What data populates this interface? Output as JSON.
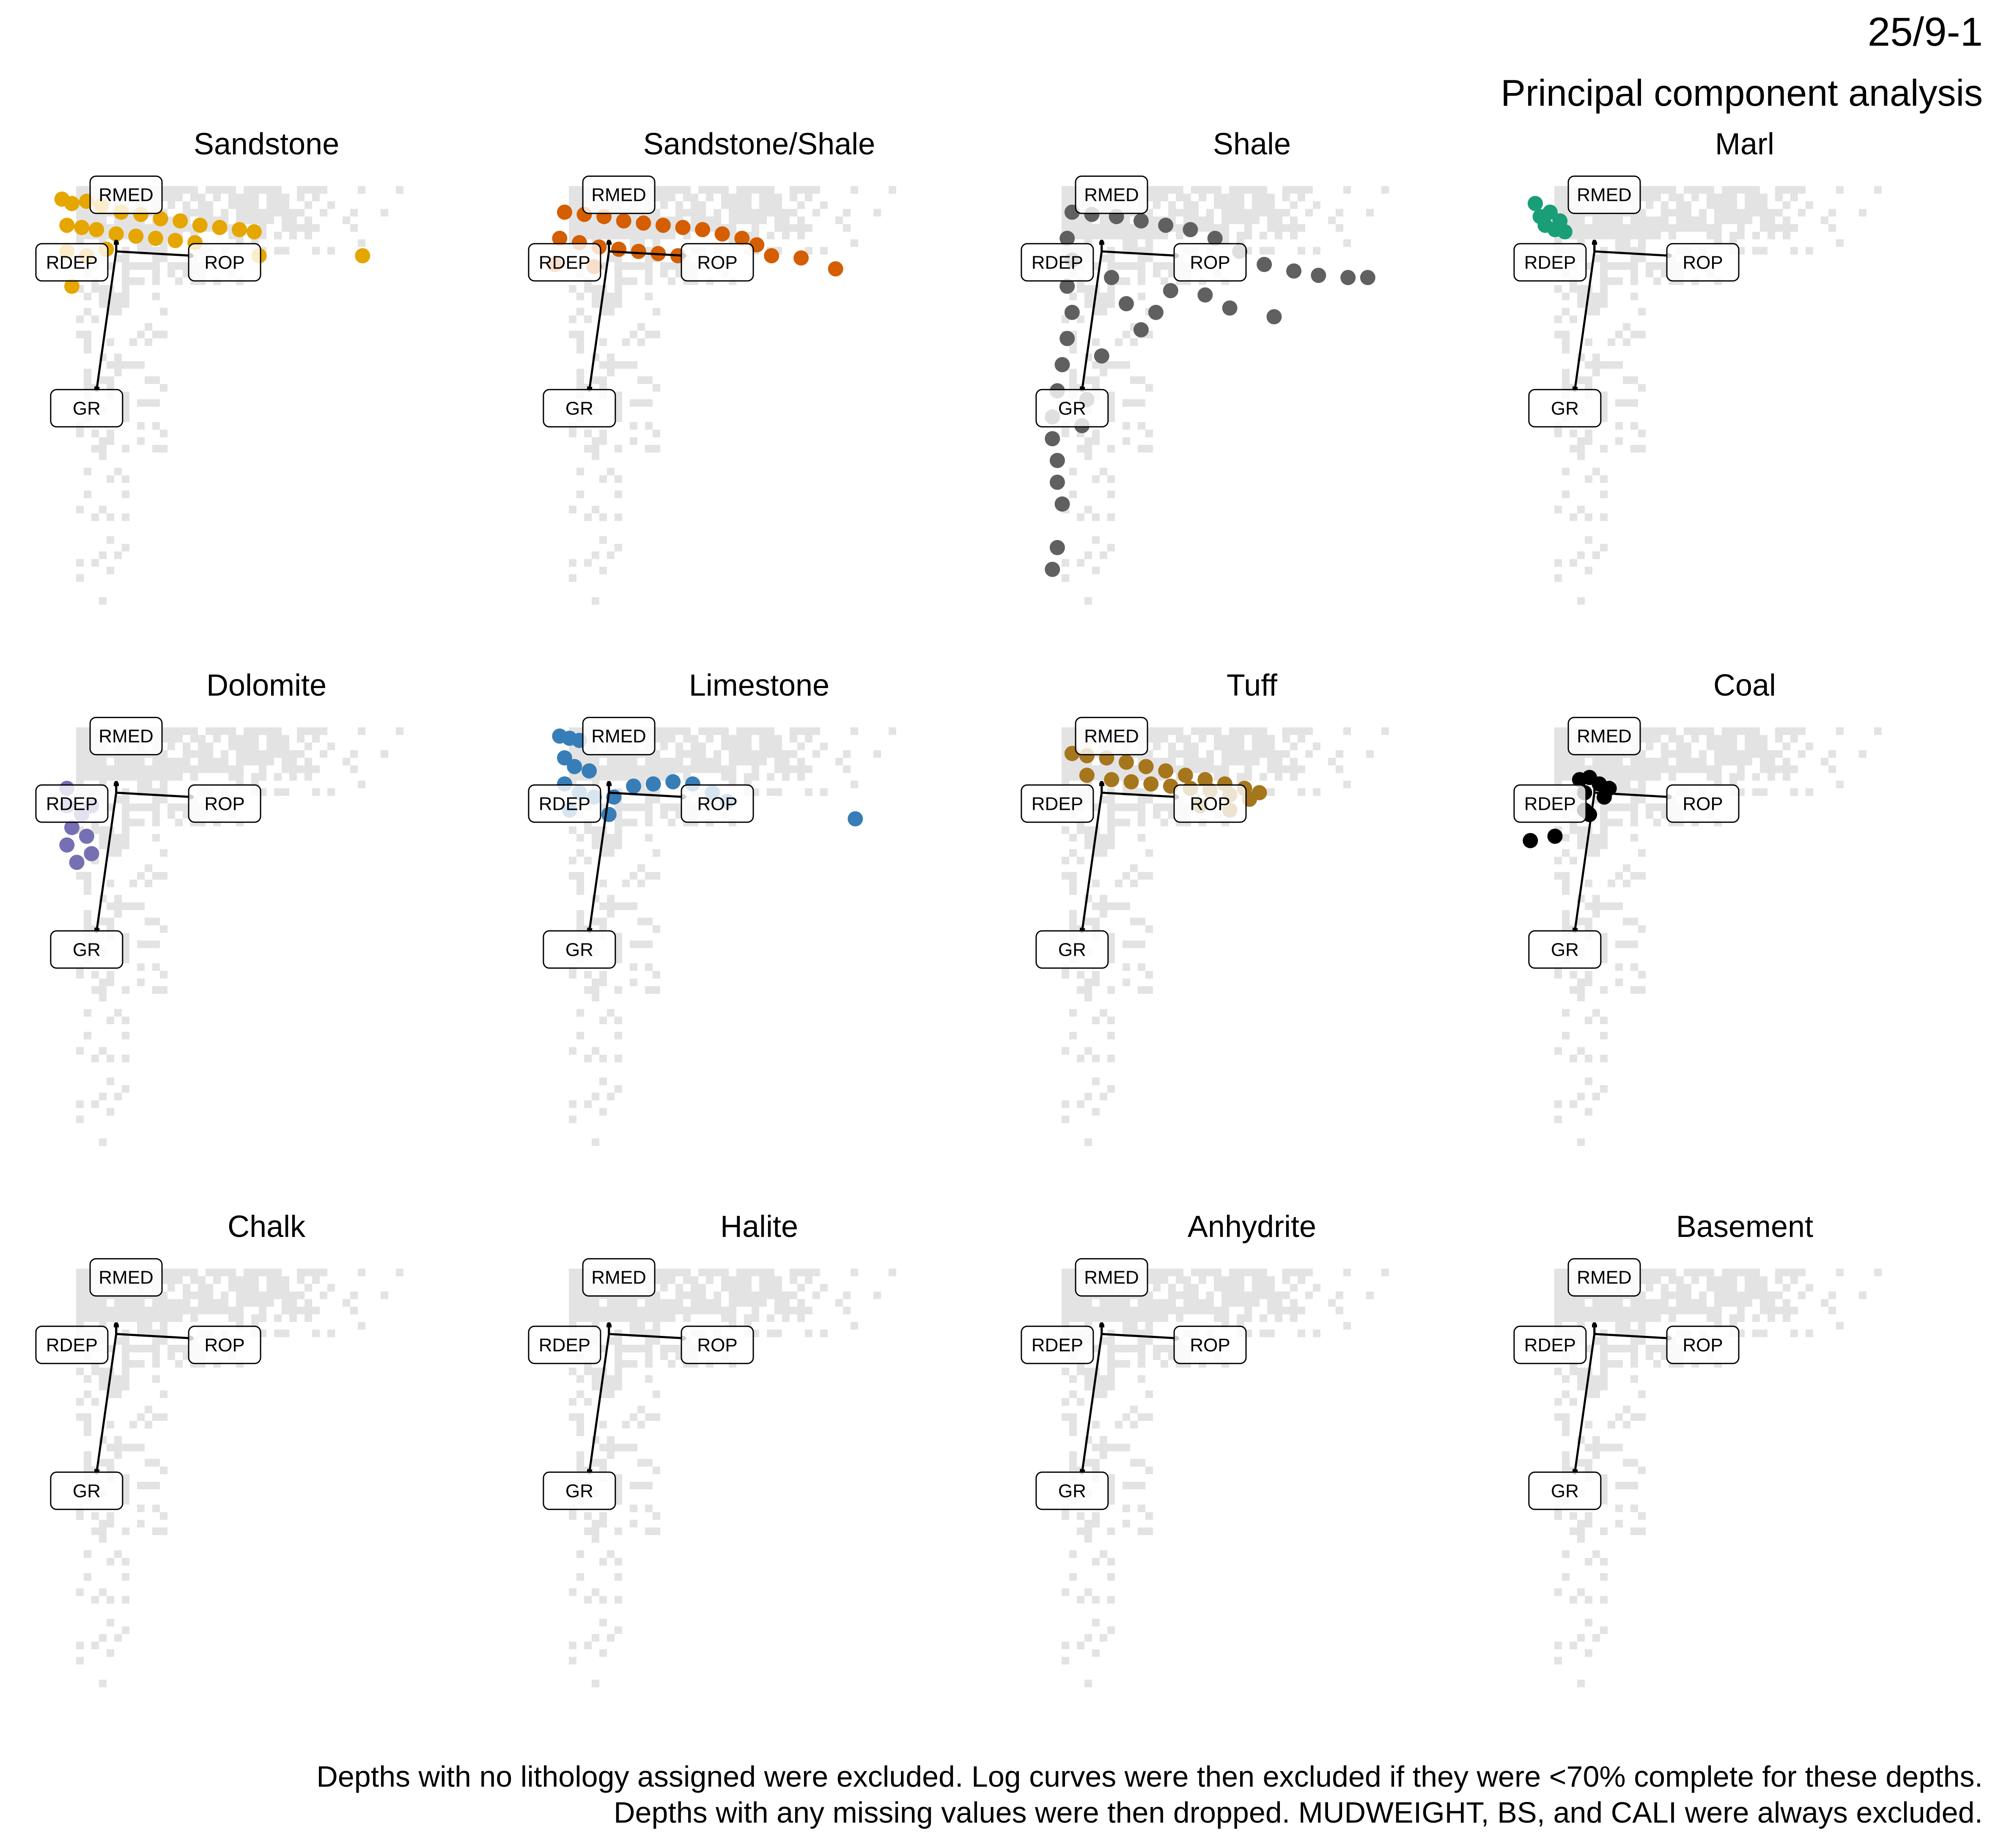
{
  "title": "25/9-1",
  "subtitle": "Principal component analysis",
  "caption": [
    "Depths with no lithology assigned were excluded. Log curves were then excluded if they were <70% complete for these depths.",
    "Depths with any missing values were then dropped. MUDWEIGHT, BS, and CALI were always excluded."
  ],
  "chart_data": {
    "type": "scatter",
    "xlim": [
      -1.5,
      8.5
    ],
    "ylim": [
      -8.5,
      1.5
    ],
    "background_color": "#e3e3e3",
    "loadings": [
      {
        "name": "RMED",
        "x": 0.0,
        "y": 0.25
      },
      {
        "name": "RDEP",
        "x": 0.0,
        "y": 0.25
      },
      {
        "name": "ROP",
        "x": 1.55,
        "y": -0.1
      },
      {
        "name": "GR",
        "x": -0.4,
        "y": -3.2
      }
    ],
    "facets": [
      {
        "name": "Sandstone",
        "color": "#E5A600",
        "points": [
          [
            -1.1,
            1.2
          ],
          [
            -0.9,
            1.1
          ],
          [
            -0.6,
            1.15
          ],
          [
            -0.3,
            1.05
          ],
          [
            0.1,
            0.9
          ],
          [
            0.5,
            0.85
          ],
          [
            0.9,
            0.75
          ],
          [
            1.3,
            0.7
          ],
          [
            1.7,
            0.6
          ],
          [
            2.1,
            0.55
          ],
          [
            2.5,
            0.5
          ],
          [
            2.8,
            0.45
          ],
          [
            -1.0,
            0.6
          ],
          [
            -0.7,
            0.55
          ],
          [
            -0.4,
            0.5
          ],
          [
            0.0,
            0.4
          ],
          [
            0.4,
            0.35
          ],
          [
            0.8,
            0.3
          ],
          [
            1.2,
            0.25
          ],
          [
            1.6,
            0.2
          ],
          [
            -1.0,
            0.0
          ],
          [
            -0.6,
            -0.1
          ],
          [
            -0.2,
            0.05
          ],
          [
            2.9,
            -0.1
          ],
          [
            -0.9,
            -0.8
          ],
          [
            5.0,
            -0.1
          ]
        ]
      },
      {
        "name": "Sandstone/Shale",
        "color": "#D55E00",
        "points": [
          [
            -0.9,
            0.9
          ],
          [
            -0.5,
            0.85
          ],
          [
            -0.1,
            0.8
          ],
          [
            0.3,
            0.7
          ],
          [
            0.7,
            0.65
          ],
          [
            1.1,
            0.6
          ],
          [
            1.5,
            0.55
          ],
          [
            1.9,
            0.5
          ],
          [
            2.3,
            0.4
          ],
          [
            2.7,
            0.3
          ],
          [
            3.0,
            0.15
          ],
          [
            -1.0,
            0.3
          ],
          [
            -0.6,
            0.2
          ],
          [
            -0.2,
            0.1
          ],
          [
            0.2,
            0.05
          ],
          [
            0.6,
            0.0
          ],
          [
            1.0,
            -0.05
          ],
          [
            1.4,
            -0.1
          ],
          [
            -1.1,
            -0.3
          ],
          [
            -0.3,
            -0.35
          ],
          [
            3.3,
            -0.1
          ],
          [
            3.9,
            -0.15
          ],
          [
            4.6,
            -0.4
          ]
        ]
      },
      {
        "name": "Shale",
        "color": "#606060",
        "points": [
          [
            -0.6,
            0.9
          ],
          [
            -0.2,
            0.85
          ],
          [
            0.3,
            0.8
          ],
          [
            0.8,
            0.7
          ],
          [
            1.3,
            0.6
          ],
          [
            1.8,
            0.5
          ],
          [
            2.3,
            0.3
          ],
          [
            2.8,
            0.0
          ],
          [
            3.3,
            -0.3
          ],
          [
            3.9,
            -0.45
          ],
          [
            4.4,
            -0.55
          ],
          [
            5.0,
            -0.6
          ],
          [
            5.4,
            -0.6
          ],
          [
            -0.7,
            0.3
          ],
          [
            -0.6,
            -0.2
          ],
          [
            -0.7,
            -0.8
          ],
          [
            -0.6,
            -1.4
          ],
          [
            -0.7,
            -2.0
          ],
          [
            -0.8,
            -2.6
          ],
          [
            -0.9,
            -3.2
          ],
          [
            -1.0,
            -3.8
          ],
          [
            -1.0,
            -4.3
          ],
          [
            -0.9,
            -4.8
          ],
          [
            -0.9,
            -5.3
          ],
          [
            -0.8,
            -5.8
          ],
          [
            -0.9,
            -6.8
          ],
          [
            -1.0,
            -7.3
          ],
          [
            0.2,
            -0.6
          ],
          [
            0.5,
            -1.2
          ],
          [
            0.8,
            -1.8
          ],
          [
            1.1,
            -1.4
          ],
          [
            1.4,
            -0.9
          ],
          [
            2.1,
            -1.0
          ],
          [
            2.6,
            -1.3
          ],
          [
            3.5,
            -1.5
          ],
          [
            -0.3,
            -3.4
          ],
          [
            -0.4,
            -4.0
          ],
          [
            0.0,
            -2.4
          ]
        ]
      },
      {
        "name": "Marl",
        "color": "#1A9E77",
        "points": [
          [
            -1.2,
            1.1
          ],
          [
            -1.1,
            0.8
          ],
          [
            -1.0,
            0.6
          ],
          [
            -0.9,
            0.9
          ],
          [
            -0.8,
            0.5
          ],
          [
            -0.7,
            0.7
          ],
          [
            -0.6,
            0.45
          ]
        ]
      },
      {
        "name": "Dolomite",
        "color": "#7570B3",
        "points": [
          [
            -1.0,
            0.1
          ],
          [
            -1.0,
            -0.3
          ],
          [
            -0.9,
            -0.8
          ],
          [
            -1.0,
            -1.2
          ],
          [
            -0.8,
            -1.6
          ],
          [
            -0.7,
            -0.5
          ],
          [
            -0.6,
            -1.0
          ],
          [
            -0.5,
            -0.3
          ],
          [
            -0.5,
            -1.4
          ]
        ]
      },
      {
        "name": "Limestone",
        "color": "#377EB8",
        "points": [
          [
            -1.0,
            1.3
          ],
          [
            -0.8,
            1.25
          ],
          [
            -0.6,
            1.2
          ],
          [
            -0.9,
            0.8
          ],
          [
            -0.7,
            0.6
          ],
          [
            -0.4,
            0.5
          ],
          [
            -0.9,
            0.2
          ],
          [
            -0.6,
            0.0
          ],
          [
            -0.3,
            -0.1
          ],
          [
            0.1,
            -0.1
          ],
          [
            0.5,
            0.15
          ],
          [
            0.9,
            0.2
          ],
          [
            1.3,
            0.25
          ],
          [
            1.7,
            0.2
          ],
          [
            2.1,
            0.0
          ],
          [
            2.4,
            -0.2
          ],
          [
            -0.8,
            -0.4
          ],
          [
            0.0,
            -0.5
          ],
          [
            5.0,
            -0.6
          ]
        ]
      },
      {
        "name": "Tuff",
        "color": "#A6761D",
        "points": [
          [
            -0.6,
            0.9
          ],
          [
            -0.3,
            0.85
          ],
          [
            0.1,
            0.8
          ],
          [
            0.5,
            0.7
          ],
          [
            0.9,
            0.6
          ],
          [
            1.3,
            0.5
          ],
          [
            1.7,
            0.4
          ],
          [
            2.1,
            0.3
          ],
          [
            2.5,
            0.2
          ],
          [
            2.9,
            0.1
          ],
          [
            3.2,
            0.0
          ],
          [
            -0.3,
            0.4
          ],
          [
            0.2,
            0.3
          ],
          [
            0.6,
            0.25
          ],
          [
            1.0,
            0.2
          ],
          [
            1.4,
            0.15
          ],
          [
            1.8,
            0.1
          ],
          [
            2.2,
            0.05
          ],
          [
            2.6,
            -0.05
          ],
          [
            3.0,
            -0.15
          ],
          [
            2.0,
            -0.3
          ],
          [
            2.6,
            -0.4
          ]
        ]
      },
      {
        "name": "Coal",
        "color": "#000000",
        "points": [
          [
            -0.3,
            0.3
          ],
          [
            -0.1,
            0.35
          ],
          [
            0.1,
            0.2
          ],
          [
            -0.2,
            0.0
          ],
          [
            0.2,
            -0.1
          ],
          [
            -0.2,
            -0.4
          ],
          [
            -0.8,
            -1.0
          ],
          [
            -1.3,
            -1.1
          ],
          [
            -0.1,
            -0.5
          ],
          [
            0.3,
            0.1
          ]
        ]
      },
      {
        "name": "Chalk",
        "color": "#000000",
        "points": []
      },
      {
        "name": "Halite",
        "color": "#000000",
        "points": []
      },
      {
        "name": "Anhydrite",
        "color": "#000000",
        "points": []
      },
      {
        "name": "Basement",
        "color": "#000000",
        "points": []
      }
    ]
  }
}
